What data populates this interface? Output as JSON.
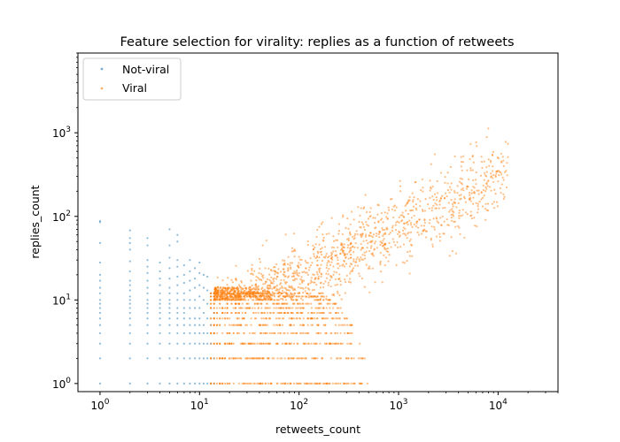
{
  "chart_data": {
    "type": "scatter",
    "title": "Feature selection for virality: replies as a function of retweets",
    "xlabel": "retweets_count",
    "ylabel": "replies_count",
    "xscale": "log",
    "yscale": "log",
    "xlim": [
      0.6,
      40000
    ],
    "ylim": [
      0.8,
      9000
    ],
    "x_ticks": [
      {
        "value": 1,
        "base": "10",
        "exp": "0"
      },
      {
        "value": 10,
        "base": "10",
        "exp": "1"
      },
      {
        "value": 100,
        "base": "10",
        "exp": "2"
      },
      {
        "value": 1000,
        "base": "10",
        "exp": "3"
      },
      {
        "value": 10000,
        "base": "10",
        "exp": "4"
      }
    ],
    "y_ticks": [
      {
        "value": 1,
        "base": "10",
        "exp": "0"
      },
      {
        "value": 10,
        "base": "10",
        "exp": "1"
      },
      {
        "value": 100,
        "base": "10",
        "exp": "2"
      },
      {
        "value": 1000,
        "base": "10",
        "exp": "3"
      }
    ],
    "legend": "top-left",
    "series": [
      {
        "name": "Not-viral",
        "color": "#1f77b4",
        "alpha": 0.5,
        "points": [
          [
            1,
            1
          ],
          [
            1,
            2
          ],
          [
            1,
            3
          ],
          [
            1,
            4
          ],
          [
            1,
            5
          ],
          [
            1,
            6
          ],
          [
            1,
            7
          ],
          [
            1,
            8
          ],
          [
            1,
            9
          ],
          [
            1,
            10
          ],
          [
            1,
            12
          ],
          [
            1,
            14
          ],
          [
            1,
            17
          ],
          [
            1,
            20
          ],
          [
            1,
            28
          ],
          [
            1,
            48
          ],
          [
            1,
            85
          ],
          [
            1,
            88
          ],
          [
            2,
            1
          ],
          [
            2,
            2
          ],
          [
            2,
            3
          ],
          [
            2,
            4
          ],
          [
            2,
            5
          ],
          [
            2,
            6
          ],
          [
            2,
            7
          ],
          [
            2,
            8
          ],
          [
            2,
            9
          ],
          [
            2,
            10
          ],
          [
            2,
            11
          ],
          [
            2,
            13
          ],
          [
            2,
            15
          ],
          [
            2,
            17
          ],
          [
            2,
            22
          ],
          [
            2,
            29
          ],
          [
            2,
            40
          ],
          [
            2,
            48
          ],
          [
            2,
            55
          ],
          [
            2,
            68
          ],
          [
            3,
            1
          ],
          [
            3,
            2
          ],
          [
            3,
            3
          ],
          [
            3,
            4
          ],
          [
            3,
            5
          ],
          [
            3,
            6
          ],
          [
            3,
            7
          ],
          [
            3,
            8
          ],
          [
            3,
            9
          ],
          [
            3,
            10
          ],
          [
            3,
            12
          ],
          [
            3,
            14
          ],
          [
            3,
            17
          ],
          [
            3,
            21
          ],
          [
            3,
            25
          ],
          [
            3,
            30
          ],
          [
            3,
            45
          ],
          [
            3,
            55
          ],
          [
            4,
            1
          ],
          [
            4,
            2
          ],
          [
            4,
            3
          ],
          [
            4,
            4
          ],
          [
            4,
            5
          ],
          [
            4,
            6
          ],
          [
            4,
            7
          ],
          [
            4,
            8
          ],
          [
            4,
            9
          ],
          [
            4,
            10
          ],
          [
            4,
            12
          ],
          [
            4,
            15
          ],
          [
            4,
            18
          ],
          [
            4,
            22
          ],
          [
            4,
            28
          ],
          [
            5,
            1
          ],
          [
            5,
            2
          ],
          [
            5,
            3
          ],
          [
            5,
            4
          ],
          [
            5,
            5
          ],
          [
            5,
            6
          ],
          [
            5,
            7
          ],
          [
            5,
            8
          ],
          [
            5,
            9
          ],
          [
            5,
            10
          ],
          [
            5,
            12
          ],
          [
            5,
            14
          ],
          [
            5,
            18
          ],
          [
            5,
            24
          ],
          [
            5,
            32
          ],
          [
            5,
            45
          ],
          [
            5,
            70
          ],
          [
            6,
            1
          ],
          [
            6,
            2
          ],
          [
            6,
            3
          ],
          [
            6,
            4
          ],
          [
            6,
            5
          ],
          [
            6,
            6
          ],
          [
            6,
            7
          ],
          [
            6,
            8
          ],
          [
            6,
            10
          ],
          [
            6,
            12
          ],
          [
            6,
            15
          ],
          [
            6,
            19
          ],
          [
            6,
            25
          ],
          [
            6,
            30
          ],
          [
            6,
            50
          ],
          [
            6,
            60
          ],
          [
            7,
            1
          ],
          [
            7,
            2
          ],
          [
            7,
            3
          ],
          [
            7,
            4
          ],
          [
            7,
            5
          ],
          [
            7,
            6
          ],
          [
            7,
            7
          ],
          [
            7,
            8
          ],
          [
            7,
            10
          ],
          [
            7,
            12
          ],
          [
            7,
            16
          ],
          [
            7,
            20
          ],
          [
            7,
            26
          ],
          [
            8,
            1
          ],
          [
            8,
            2
          ],
          [
            8,
            3
          ],
          [
            8,
            4
          ],
          [
            8,
            5
          ],
          [
            8,
            6
          ],
          [
            8,
            8
          ],
          [
            8,
            10
          ],
          [
            8,
            13
          ],
          [
            8,
            17
          ],
          [
            8,
            22
          ],
          [
            8,
            30
          ],
          [
            9,
            1
          ],
          [
            9,
            2
          ],
          [
            9,
            3
          ],
          [
            9,
            4
          ],
          [
            9,
            5
          ],
          [
            9,
            6
          ],
          [
            9,
            8
          ],
          [
            9,
            10
          ],
          [
            9,
            14
          ],
          [
            9,
            18
          ],
          [
            9,
            24
          ],
          [
            10,
            1
          ],
          [
            10,
            2
          ],
          [
            10,
            3
          ],
          [
            10,
            4
          ],
          [
            10,
            5
          ],
          [
            10,
            6
          ],
          [
            10,
            8
          ],
          [
            10,
            11
          ],
          [
            10,
            15
          ],
          [
            10,
            21
          ],
          [
            10,
            28
          ],
          [
            11,
            1
          ],
          [
            11,
            2
          ],
          [
            11,
            3
          ],
          [
            11,
            4
          ],
          [
            11,
            5
          ],
          [
            11,
            7
          ],
          [
            11,
            10
          ],
          [
            11,
            14
          ],
          [
            11,
            20
          ],
          [
            12,
            1
          ],
          [
            12,
            2
          ],
          [
            12,
            3
          ],
          [
            12,
            4
          ],
          [
            12,
            6
          ],
          [
            12,
            9
          ],
          [
            12,
            13
          ],
          [
            12,
            19
          ],
          [
            13,
            1
          ],
          [
            13,
            2
          ],
          [
            13,
            3
          ],
          [
            13,
            5
          ],
          [
            13,
            8
          ],
          [
            13,
            12
          ],
          [
            14,
            1
          ],
          [
            14,
            2
          ],
          [
            14,
            4
          ],
          [
            14,
            7
          ],
          [
            14,
            11
          ]
        ]
      },
      {
        "name": "Viral",
        "color": "#ff7f0e",
        "alpha": 0.5,
        "points": []
      }
    ]
  }
}
